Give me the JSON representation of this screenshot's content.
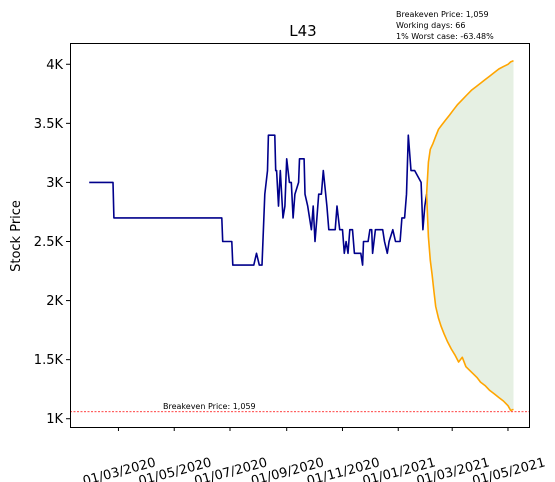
{
  "chart_data": {
    "type": "line",
    "title": "L43",
    "ylabel": "Stock Price",
    "xlabel": "",
    "ylim": [
      930,
      4180
    ],
    "xlim": [
      "2020-01-08",
      "2021-05-24"
    ],
    "y_ticks": [
      {
        "value": 1000,
        "label": "1K"
      },
      {
        "value": 1500,
        "label": "1.5K"
      },
      {
        "value": 2000,
        "label": "2K"
      },
      {
        "value": 2500,
        "label": "2.5K"
      },
      {
        "value": 3000,
        "label": "3K"
      },
      {
        "value": 3500,
        "label": "3.5K"
      },
      {
        "value": 4000,
        "label": "4K"
      }
    ],
    "x_ticks": [
      {
        "date": "2020-03-01",
        "label": "01/03/2020"
      },
      {
        "date": "2020-05-01",
        "label": "01/05/2020"
      },
      {
        "date": "2020-07-01",
        "label": "01/07/2020"
      },
      {
        "date": "2020-09-01",
        "label": "01/09/2020"
      },
      {
        "date": "2020-11-01",
        "label": "01/11/2020"
      },
      {
        "date": "2021-01-01",
        "label": "01/01/2021"
      },
      {
        "date": "2021-03-01",
        "label": "01/03/2021"
      },
      {
        "date": "2021-05-01",
        "label": "01/05/2021"
      }
    ],
    "annotations": [
      "Breakeven Price: 1,059",
      "Working days: 66",
      "1% Worst case: -63.48%"
    ],
    "breakeven": {
      "value": 1059,
      "label": "Breakeven Price: 1,059"
    },
    "colors": {
      "price": "#00008b",
      "projection": "#ffa500",
      "band": "#e6f0e3",
      "breakeven": "#ff0000"
    },
    "series": [
      {
        "values": [
          [
            "2020-01-29",
            3000
          ],
          [
            "2020-02-12",
            3000
          ],
          [
            "2020-02-24",
            3000
          ],
          [
            "2020-02-25",
            2700
          ],
          [
            "2020-03-20",
            2700
          ],
          [
            "2020-04-20",
            2700
          ],
          [
            "2020-05-20",
            2700
          ],
          [
            "2020-06-15",
            2700
          ],
          [
            "2020-06-22",
            2700
          ],
          [
            "2020-06-23",
            2500
          ],
          [
            "2020-07-03",
            2500
          ],
          [
            "2020-07-04",
            2300
          ],
          [
            "2020-07-27",
            2300
          ],
          [
            "2020-07-30",
            2400
          ],
          [
            "2020-08-02",
            2300
          ],
          [
            "2020-08-05",
            2300
          ],
          [
            "2020-08-08",
            2900
          ],
          [
            "2020-08-11",
            3100
          ],
          [
            "2020-08-12",
            3400
          ],
          [
            "2020-08-19",
            3400
          ],
          [
            "2020-08-20",
            3100
          ],
          [
            "2020-08-21",
            3100
          ],
          [
            "2020-08-23",
            2800
          ],
          [
            "2020-08-25",
            3100
          ],
          [
            "2020-08-28",
            2700
          ],
          [
            "2020-08-30",
            2800
          ],
          [
            "2020-09-01",
            3200
          ],
          [
            "2020-09-04",
            3000
          ],
          [
            "2020-09-06",
            3000
          ],
          [
            "2020-09-08",
            2700
          ],
          [
            "2020-09-10",
            2900
          ],
          [
            "2020-09-14",
            3000
          ],
          [
            "2020-09-15",
            3200
          ],
          [
            "2020-09-20",
            3200
          ],
          [
            "2020-09-21",
            2900
          ],
          [
            "2020-09-24",
            2800
          ],
          [
            "2020-09-28",
            2600
          ],
          [
            "2020-09-30",
            2800
          ],
          [
            "2020-10-02",
            2500
          ],
          [
            "2020-10-04",
            2700
          ],
          [
            "2020-10-06",
            2900
          ],
          [
            "2020-10-09",
            2900
          ],
          [
            "2020-10-11",
            3100
          ],
          [
            "2020-10-15",
            2800
          ],
          [
            "2020-10-17",
            2600
          ],
          [
            "2020-10-24",
            2600
          ],
          [
            "2020-10-26",
            2800
          ],
          [
            "2020-10-29",
            2600
          ],
          [
            "2020-11-01",
            2600
          ],
          [
            "2020-11-03",
            2400
          ],
          [
            "2020-11-05",
            2500
          ],
          [
            "2020-11-07",
            2400
          ],
          [
            "2020-11-09",
            2600
          ],
          [
            "2020-11-12",
            2600
          ],
          [
            "2020-11-14",
            2400
          ],
          [
            "2020-11-21",
            2400
          ],
          [
            "2020-11-23",
            2300
          ],
          [
            "2020-11-24",
            2500
          ],
          [
            "2020-11-29",
            2500
          ],
          [
            "2020-12-01",
            2600
          ],
          [
            "2020-12-03",
            2600
          ],
          [
            "2020-12-04",
            2400
          ],
          [
            "2020-12-07",
            2600
          ],
          [
            "2020-12-15",
            2600
          ],
          [
            "2020-12-17",
            2500
          ],
          [
            "2020-12-20",
            2400
          ],
          [
            "2020-12-22",
            2500
          ],
          [
            "2020-12-26",
            2600
          ],
          [
            "2020-12-29",
            2500
          ],
          [
            "2021-01-03",
            2500
          ],
          [
            "2021-01-05",
            2700
          ],
          [
            "2021-01-08",
            2700
          ],
          [
            "2021-01-10",
            2900
          ],
          [
            "2021-01-12",
            3400
          ],
          [
            "2021-01-15",
            3100
          ],
          [
            "2021-01-19",
            3100
          ],
          [
            "2021-01-26",
            3000
          ],
          [
            "2021-01-28",
            2600
          ],
          [
            "2021-01-30",
            2800
          ],
          [
            "2021-02-01",
            2900
          ]
        ]
      },
      {
        "values": [
          [
            "2021-02-01",
            2900
          ],
          [
            "2021-02-03",
            3170
          ],
          [
            "2021-02-05",
            3280
          ],
          [
            "2021-02-08",
            3330
          ],
          [
            "2021-02-11",
            3390
          ],
          [
            "2021-02-14",
            3450
          ],
          [
            "2021-02-18",
            3490
          ],
          [
            "2021-02-22",
            3530
          ],
          [
            "2021-02-26",
            3570
          ],
          [
            "2021-03-02",
            3610
          ],
          [
            "2021-03-07",
            3660
          ],
          [
            "2021-03-12",
            3700
          ],
          [
            "2021-03-17",
            3740
          ],
          [
            "2021-03-22",
            3780
          ],
          [
            "2021-03-27",
            3810
          ],
          [
            "2021-04-01",
            3840
          ],
          [
            "2021-04-06",
            3870
          ],
          [
            "2021-04-11",
            3900
          ],
          [
            "2021-04-16",
            3930
          ],
          [
            "2021-04-21",
            3960
          ],
          [
            "2021-04-26",
            3980
          ],
          [
            "2021-05-01",
            4000
          ],
          [
            "2021-05-04",
            4020
          ],
          [
            "2021-05-07",
            4030
          ]
        ]
      },
      {
        "values": [
          [
            "2021-02-01",
            2900
          ],
          [
            "2021-02-03",
            2540
          ],
          [
            "2021-02-05",
            2340
          ],
          [
            "2021-02-07",
            2220
          ],
          [
            "2021-02-09",
            2080
          ],
          [
            "2021-02-11",
            1950
          ],
          [
            "2021-02-14",
            1850
          ],
          [
            "2021-02-17",
            1780
          ],
          [
            "2021-02-20",
            1720
          ],
          [
            "2021-02-24",
            1650
          ],
          [
            "2021-02-28",
            1590
          ],
          [
            "2021-03-04",
            1540
          ],
          [
            "2021-03-08",
            1480
          ],
          [
            "2021-03-12",
            1520
          ],
          [
            "2021-03-16",
            1440
          ],
          [
            "2021-03-20",
            1410
          ],
          [
            "2021-03-24",
            1380
          ],
          [
            "2021-03-28",
            1350
          ],
          [
            "2021-04-01",
            1310
          ],
          [
            "2021-04-06",
            1280
          ],
          [
            "2021-04-11",
            1240
          ],
          [
            "2021-04-16",
            1210
          ],
          [
            "2021-04-21",
            1180
          ],
          [
            "2021-04-26",
            1150
          ],
          [
            "2021-05-01",
            1110
          ],
          [
            "2021-05-04",
            1070
          ],
          [
            "2021-05-07",
            1080
          ]
        ]
      }
    ]
  }
}
